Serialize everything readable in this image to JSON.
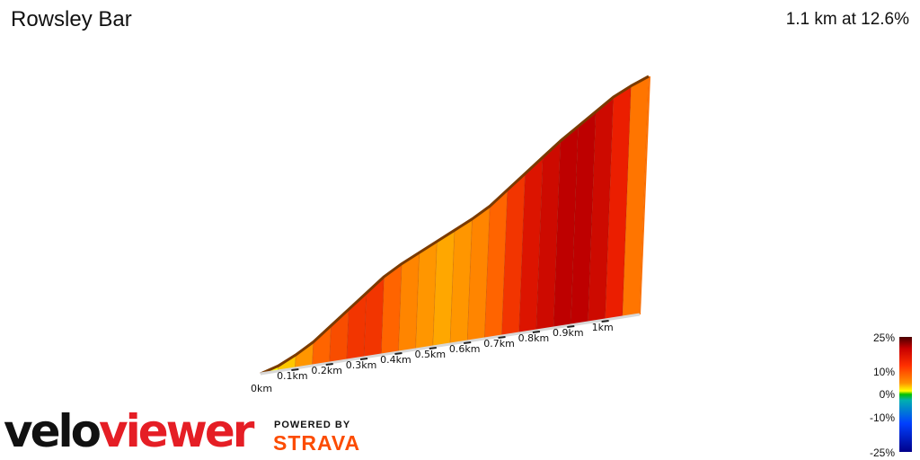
{
  "header": {
    "title": "Rowsley Bar",
    "summary": "1.1 km at 12.6%"
  },
  "scale": {
    "labels": [
      "25%",
      "10%",
      "0%",
      "-10%",
      "-25%"
    ]
  },
  "branding": {
    "logo_part1": "velo",
    "logo_part2": "viewer",
    "powered_by": "POWERED BY",
    "strava": "STRAVA"
  },
  "chart_data": {
    "type": "area",
    "title": "Rowsley Bar",
    "subtitle": "1.1 km at 12.6%",
    "x_tick_labels": [
      "0km",
      "0.1km",
      "0.2km",
      "0.3km",
      "0.4km",
      "0.5km",
      "0.6km",
      "0.7km",
      "0.8km",
      "0.9km",
      "1km"
    ],
    "x": [
      0,
      0.05,
      0.1,
      0.15,
      0.2,
      0.25,
      0.3,
      0.35,
      0.4,
      0.45,
      0.5,
      0.55,
      0.6,
      0.65,
      0.7,
      0.75,
      0.8,
      0.85,
      0.9,
      0.95,
      1.0,
      1.05,
      1.1
    ],
    "elevation_gain_m": [
      0,
      3,
      8,
      14,
      22,
      30,
      38,
      46,
      52,
      57,
      62,
      67,
      72,
      78,
      86,
      94,
      102,
      110,
      117,
      124,
      131,
      136,
      140
    ],
    "gradient_percent": [
      5,
      8,
      11,
      14,
      15,
      16,
      16,
      14,
      12,
      11,
      10,
      11,
      12,
      14,
      16,
      18,
      19,
      20,
      20,
      19,
      17,
      13,
      12
    ],
    "gradient_color_scale_percent": [
      25,
      10,
      0,
      -10,
      -25
    ],
    "xlim": [
      0,
      1.1
    ]
  }
}
